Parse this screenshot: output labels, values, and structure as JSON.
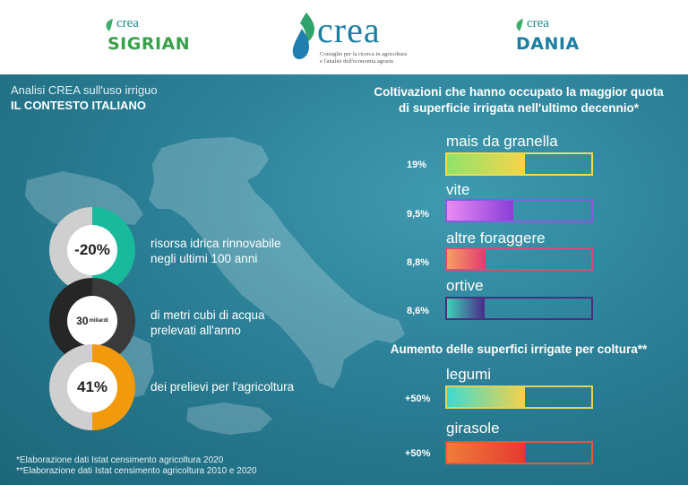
{
  "header": {
    "logo_left": {
      "small": "crea",
      "big": "SIGRIAN"
    },
    "logo_center": {
      "name": "crea",
      "subtitle_line1": "Consiglio per la ricerca in agricoltura",
      "subtitle_line2": "e l'analisi dell'economia agraria"
    },
    "logo_right": {
      "small": "crea",
      "big": "DANIA"
    }
  },
  "left": {
    "kicker": "Analisi CREA sull'uso irriguo",
    "title": "IL CONTESTO ITALIANO",
    "stats": [
      {
        "value": "-20%",
        "text_line1": "risorsa idrica rinnovabile",
        "text_line2": "negli ultimi 100 anni",
        "color": "#19b99b"
      },
      {
        "value_main": "30",
        "value_unit": "miliardi",
        "text_line1": "di metri cubi di acqua",
        "text_line2": "prelevati all'anno",
        "color": "#3a3a3a"
      },
      {
        "value": "41%",
        "text_line1": "dei prelievi per l'agricoltura",
        "color": "#f29a0c"
      }
    ],
    "footnote1": "*Elaborazione dati Istat censimento agricoltura 2020",
    "footnote2": "**Elaborazione dati Istat censimento agricoltura 2010 e 2020"
  },
  "right": {
    "title_line1": "Coltivazioni che hanno occupato la maggior quota",
    "title_line2": "di superficie irrigata nell'ultimo decennio*",
    "crops": [
      {
        "label": "mais da granella",
        "pct": "19%",
        "fill": 0.54,
        "gradient": [
          "#8fe36a",
          "#f7d44a"
        ],
        "border": "#e8de5a"
      },
      {
        "label": "vite",
        "pct": "9,5%",
        "fill": 0.46,
        "gradient": [
          "#e98bf3",
          "#8a3ed8"
        ],
        "border": "#8a5be0"
      },
      {
        "label": "altre foraggere",
        "pct": "8,8%",
        "fill": 0.27,
        "gradient": [
          "#f5a060",
          "#e23a72"
        ],
        "border": "#d64c7a"
      },
      {
        "label": "ortive",
        "pct": "8,6%",
        "fill": 0.26,
        "gradient": [
          "#3fd1b5",
          "#4a2a8a"
        ],
        "border": "#4a2f7c"
      }
    ],
    "subtitle": "Aumento delle superfici irrigate per coltura**",
    "increases": [
      {
        "label": "legumi",
        "pct": "+50%",
        "fill": 0.54,
        "gradient": [
          "#3ddbd0",
          "#f5d24a"
        ],
        "border": "#e2d35c"
      },
      {
        "label": "girasole",
        "pct": "+50%",
        "fill": 0.54,
        "gradient": [
          "#ee7d3a",
          "#e6392f"
        ],
        "border": "#e8563c"
      }
    ]
  }
}
